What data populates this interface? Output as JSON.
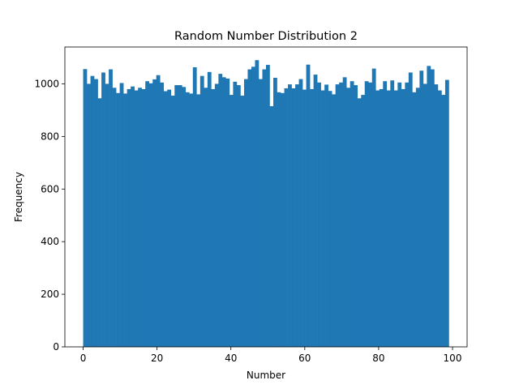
{
  "chart_data": {
    "type": "bar",
    "title": "Random Number Distribution 2",
    "xlabel": "Number",
    "ylabel": "Frequency",
    "xlim": [
      -4.95,
      103.95
    ],
    "ylim": [
      0,
      1140
    ],
    "x_ticks": [
      0,
      20,
      40,
      60,
      80,
      100
    ],
    "y_ticks": [
      0,
      200,
      400,
      600,
      800,
      1000
    ],
    "bin_start": 0,
    "bin_end": 99,
    "bar_color": "#1f77b4",
    "grid": false,
    "legend": "none",
    "values": [
      1056,
      1000,
      1030,
      1018,
      945,
      1043,
      1000,
      1055,
      985,
      965,
      1003,
      963,
      980,
      990,
      975,
      985,
      980,
      1010,
      1002,
      1017,
      1033,
      1005,
      972,
      978,
      955,
      995,
      995,
      988,
      968,
      963,
      1063,
      960,
      1030,
      985,
      1045,
      980,
      1000,
      1038,
      1025,
      1020,
      958,
      1008,
      995,
      955,
      1018,
      1055,
      1065,
      1090,
      1018,
      1055,
      1072,
      915,
      1023,
      968,
      965,
      983,
      998,
      983,
      998,
      1018,
      978,
      1073,
      980,
      1035,
      1005,
      975,
      997,
      973,
      960,
      998,
      1005,
      1025,
      985,
      1010,
      995,
      945,
      958,
      1010,
      1005,
      1058,
      975,
      980,
      1010,
      975,
      1013,
      975,
      1005,
      980,
      1005,
      1043,
      968,
      985,
      1050,
      1000,
      1068,
      1055,
      998,
      975,
      958,
      1015
    ]
  }
}
